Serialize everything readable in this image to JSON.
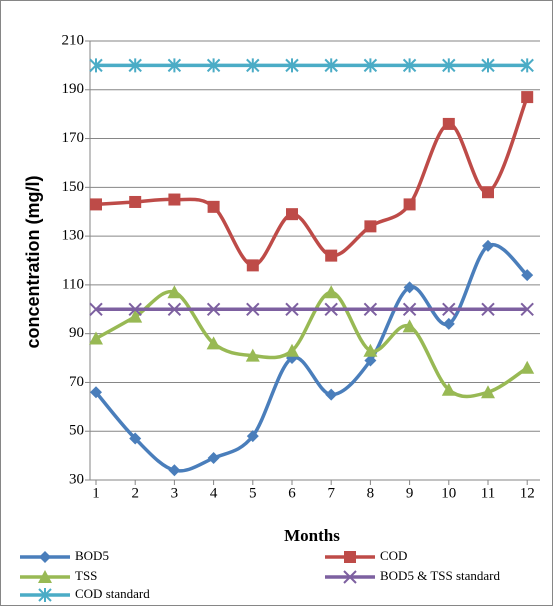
{
  "chart_data": {
    "type": "line",
    "x_label": "Months",
    "y_label": "concentration (mg/l)",
    "categories": [
      "1",
      "2",
      "3",
      "4",
      "5",
      "6",
      "7",
      "8",
      "9",
      "10",
      "11",
      "12"
    ],
    "ylim": [
      30,
      210
    ],
    "yticks": [
      30,
      50,
      70,
      90,
      110,
      130,
      150,
      170,
      190,
      210
    ],
    "grid": true,
    "legend": "bottom",
    "series": [
      {
        "name": "BOD5",
        "color": "#4a7ebb",
        "marker": "diamond",
        "values": [
          66,
          47,
          34,
          39,
          48,
          80,
          65,
          79,
          109,
          94,
          126,
          114
        ]
      },
      {
        "name": "COD",
        "color": "#be4b48",
        "marker": "square",
        "values": [
          143,
          144,
          145,
          142,
          118,
          139,
          122,
          134,
          143,
          176,
          148,
          187
        ]
      },
      {
        "name": "TSS",
        "color": "#98b954",
        "marker": "triangle",
        "values": [
          88,
          97,
          107,
          86,
          81,
          83,
          107,
          83,
          93,
          67,
          66,
          76
        ]
      },
      {
        "name": "BOD5 & TSS standard",
        "color": "#7d60a0",
        "marker": "x",
        "values": [
          100,
          100,
          100,
          100,
          100,
          100,
          100,
          100,
          100,
          100,
          100,
          100
        ]
      },
      {
        "name": "COD standard",
        "color": "#4bacc6",
        "marker": "star",
        "values": [
          200,
          200,
          200,
          200,
          200,
          200,
          200,
          200,
          200,
          200,
          200,
          200
        ]
      }
    ]
  }
}
